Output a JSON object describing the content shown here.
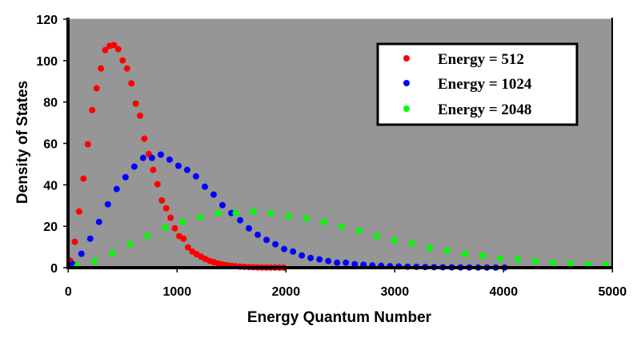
{
  "chart_data": {
    "type": "scatter",
    "title": "",
    "xlabel": "Energy Quantum Number",
    "ylabel": "Density of States",
    "xlim": [
      0,
      5000
    ],
    "ylim": [
      0,
      120
    ],
    "xticks": [
      0,
      1000,
      2000,
      3000,
      4000,
      5000
    ],
    "yticks": [
      0,
      20,
      40,
      60,
      80,
      100,
      120
    ],
    "xtick_labels": [
      "0",
      "1000",
      "2000",
      "3000",
      "4000",
      "5000"
    ],
    "ytick_labels": [
      "0",
      "20",
      "40",
      "60",
      "80",
      "100",
      "120"
    ],
    "grid": false,
    "plot_background": "#969696",
    "legend_placement": "top-right",
    "series": [
      {
        "name": "Energy = 512",
        "color": "#ff0000",
        "x": [
          20,
          60,
          100,
          140,
          180,
          220,
          260,
          300,
          340,
          380,
          420,
          460,
          500,
          540,
          580,
          620,
          660,
          700,
          740,
          780,
          820,
          860,
          900,
          940,
          980,
          1020,
          1060,
          1100,
          1140,
          1180,
          1220,
          1260,
          1300,
          1340,
          1380,
          1420,
          1460,
          1500,
          1540,
          1580,
          1620,
          1660,
          1700,
          1740,
          1780,
          1820,
          1860,
          1900,
          1940,
          1980
        ],
        "y": [
          3.3,
          12.5,
          27.1,
          43.0,
          59.6,
          76.1,
          86.6,
          96.2,
          105.1,
          107.1,
          107.5,
          105.5,
          100.1,
          96.2,
          89.0,
          79.2,
          73.4,
          62.3,
          54.9,
          47.2,
          40.3,
          32.5,
          28.7,
          24.1,
          19.0,
          15.2,
          14.0,
          9.8,
          7.8,
          6.5,
          5.3,
          4.2,
          3.3,
          2.6,
          2.0,
          1.5,
          1.2,
          0.9,
          0.7,
          0.5,
          0.4,
          0.3,
          0.2,
          0.15,
          0.1,
          0.08,
          0.06,
          0.04,
          0.03,
          0.02
        ]
      },
      {
        "name": "Energy = 1024",
        "color": "#0000ff",
        "x": [
          40,
          121,
          202,
          283,
          364,
          445,
          526,
          607,
          688,
          769,
          850,
          931,
          1012,
          1093,
          1174,
          1255,
          1336,
          1417,
          1498,
          1579,
          1660,
          1741,
          1822,
          1903,
          1984,
          2065,
          2146,
          2227,
          2308,
          2389,
          2470,
          2551,
          2632,
          2713,
          2794,
          2875,
          2956,
          3037,
          3118,
          3199,
          3280,
          3361,
          3442,
          3523,
          3604,
          3685,
          3766,
          3847,
          3928,
          4009
        ],
        "y": [
          1.7,
          6.7,
          14.0,
          22.1,
          30.6,
          38.0,
          43.7,
          48.8,
          53.0,
          53.0,
          54.6,
          52.2,
          49.2,
          47.2,
          44.1,
          39.1,
          35.3,
          30.2,
          26.4,
          22.9,
          19.0,
          15.9,
          13.4,
          11.3,
          9.0,
          7.8,
          5.9,
          4.7,
          4.0,
          3.2,
          2.4,
          2.4,
          1.7,
          1.4,
          1.1,
          0.9,
          0.7,
          0.6,
          0.5,
          0.4,
          0.3,
          0.25,
          0.2,
          0.15,
          0.12,
          0.1,
          0.08,
          0.06,
          0.05,
          0.04
        ]
      },
      {
        "name": "Energy = 2048",
        "color": "#00ff00",
        "x": [
          80,
          242,
          404,
          566,
          728,
          890,
          1052,
          1214,
          1376,
          1538,
          1700,
          1862,
          2024,
          2186,
          2348,
          2510,
          2672,
          2834,
          2996,
          3158,
          3320,
          3482,
          3644,
          3806,
          3968,
          4130,
          4292,
          4454,
          4616,
          4778,
          4940
        ],
        "y": [
          0.9,
          3.2,
          7.1,
          11.3,
          15.2,
          19.4,
          22.1,
          24.4,
          26.3,
          26.3,
          27.1,
          26.3,
          24.8,
          23.7,
          22.1,
          19.8,
          17.9,
          15.2,
          13.2,
          11.7,
          9.4,
          8.2,
          6.7,
          5.9,
          4.4,
          4.0,
          3.2,
          2.4,
          2.0,
          1.7,
          1.3
        ]
      }
    ]
  }
}
